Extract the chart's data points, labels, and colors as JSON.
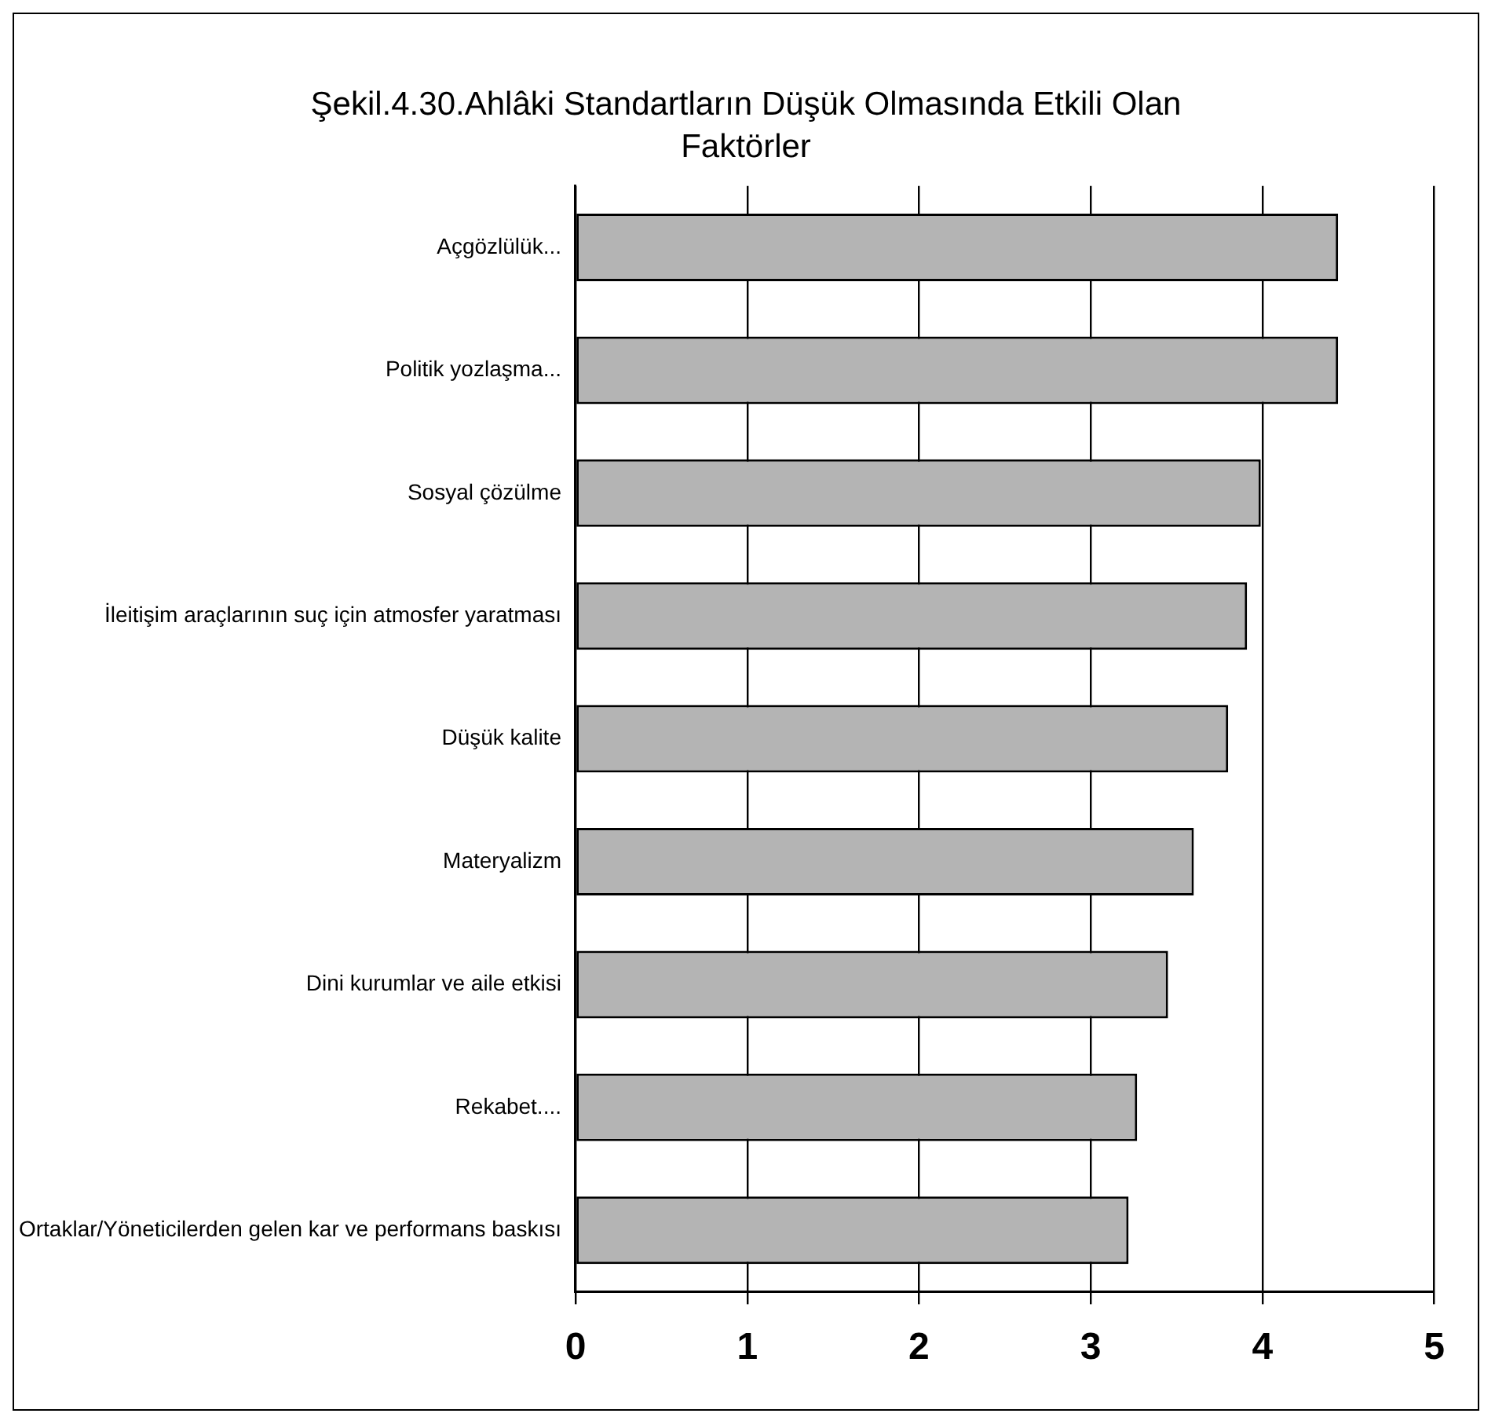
{
  "chart_data": {
    "type": "bar",
    "orientation": "horizontal",
    "title": "Şekil.4.30.Ahlâki Standartların Düşük Olmasında Etkili Olan Faktörler",
    "categories": [
      "Açgözlülük...",
      "Politik yozlaşma...",
      "Sosyal çözülme",
      "İleitişim araçlarının suç için atmosfer yaratması",
      "Düşük kalite",
      "Materyalizm",
      "Dini kurumlar ve aile etkisi",
      "Rekabet....",
      "Ortaklar/Yöneticilerden gelen kar ve performans baskısı"
    ],
    "values": [
      4.44,
      4.44,
      3.99,
      3.91,
      3.8,
      3.6,
      3.45,
      3.27,
      3.22
    ],
    "color": "#b4b4b4",
    "xlim": [
      0,
      5
    ],
    "xticks": [
      0,
      1,
      2,
      3,
      4,
      5
    ],
    "grid": "x",
    "legend": false
  }
}
